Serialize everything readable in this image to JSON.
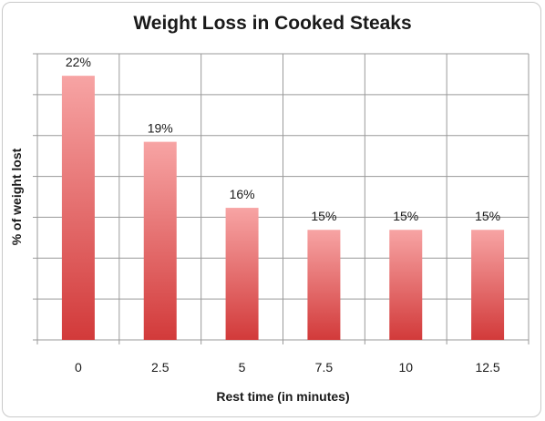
{
  "chart_data": {
    "type": "bar",
    "title": "Weight Loss in Cooked Steaks",
    "xlabel": "Rest time (in minutes)",
    "ylabel": "% of weight lost",
    "categories": [
      "0",
      "2.5",
      "5",
      "7.5",
      "10",
      "12.5"
    ],
    "values": [
      22,
      19,
      16,
      15,
      15,
      15
    ],
    "data_labels": [
      "22%",
      "19%",
      "16%",
      "15%",
      "15%",
      "15%"
    ],
    "ylim": [
      10,
      23
    ],
    "y_tick_labels_shown": false,
    "grid": true,
    "legend": "none",
    "colors": {
      "bar_top": "#f7a4a4",
      "bar_bottom": "#d23a3a",
      "grid": "#9a9a9a"
    }
  }
}
